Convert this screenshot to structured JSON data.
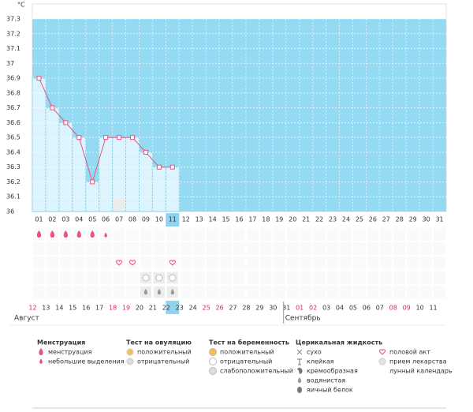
{
  "chart_data": {
    "type": "line",
    "y_label": "°C",
    "categories": [
      "01",
      "02",
      "03",
      "04",
      "05",
      "06",
      "07",
      "08",
      "09",
      "10",
      "11",
      "12",
      "13",
      "14",
      "15",
      "16",
      "17",
      "18",
      "19",
      "20",
      "21",
      "22",
      "23",
      "24",
      "25",
      "26",
      "27",
      "28",
      "29",
      "30",
      "31"
    ],
    "values": [
      36.9,
      36.7,
      36.6,
      36.5,
      36.2,
      36.5,
      36.5,
      36.5,
      36.4,
      36.3,
      36.3,
      null,
      null,
      null,
      null,
      null,
      null,
      null,
      null,
      null,
      null,
      null,
      null,
      null,
      null,
      null,
      null,
      null,
      null,
      null,
      null
    ],
    "color": "#e8547a",
    "ylim": [
      36,
      37.3
    ],
    "yticks": [
      36,
      36.1,
      36.2,
      36.3,
      36.4,
      36.5,
      36.6,
      36.7,
      36.8,
      36.9,
      37,
      37.1,
      37.2,
      37.3
    ],
    "grid": true,
    "current_index": 10,
    "markers": {
      "menstruation": [
        1,
        2,
        3,
        4,
        5
      ],
      "light_spotting": [
        6
      ],
      "intercourse": [
        7,
        8,
        11
      ],
      "ovulation_negative": [
        9,
        10,
        11
      ],
      "watery": [
        9,
        10,
        11
      ],
      "lunar": [
        7
      ]
    },
    "dates": [
      {
        "label": "12",
        "weekend": true
      },
      {
        "label": "13",
        "weekend": false
      },
      {
        "label": "14",
        "weekend": false
      },
      {
        "label": "15",
        "weekend": false
      },
      {
        "label": "16",
        "weekend": false
      },
      {
        "label": "17",
        "weekend": false
      },
      {
        "label": "18",
        "weekend": true
      },
      {
        "label": "19",
        "weekend": true
      },
      {
        "label": "20",
        "weekend": false
      },
      {
        "label": "21",
        "weekend": false
      },
      {
        "label": "22",
        "weekend": false
      },
      {
        "label": "23",
        "weekend": false
      },
      {
        "label": "24",
        "weekend": false
      },
      {
        "label": "25",
        "weekend": true
      },
      {
        "label": "26",
        "weekend": true
      },
      {
        "label": "27",
        "weekend": false
      },
      {
        "label": "28",
        "weekend": false
      },
      {
        "label": "29",
        "weekend": false
      },
      {
        "label": "30",
        "weekend": false
      },
      {
        "label": "31",
        "weekend": false
      },
      {
        "label": "01",
        "weekend": true
      },
      {
        "label": "02",
        "weekend": true
      },
      {
        "label": "03",
        "weekend": false
      },
      {
        "label": "04",
        "weekend": false
      },
      {
        "label": "05",
        "weekend": false
      },
      {
        "label": "06",
        "weekend": false
      },
      {
        "label": "07",
        "weekend": false
      },
      {
        "label": "08",
        "weekend": true
      },
      {
        "label": "09",
        "weekend": true
      },
      {
        "label": "10",
        "weekend": false
      },
      {
        "label": "11",
        "weekend": false
      }
    ],
    "months": [
      {
        "label": "Август",
        "start": 0
      },
      {
        "label": "Сентябрь",
        "start": 20
      }
    ],
    "legend": [
      {
        "title": "Менструация",
        "items": [
          "менструация",
          "небольшие выделения"
        ]
      },
      {
        "title": "Тест на овуляцию",
        "items": [
          "положительный",
          "отрицательный"
        ]
      },
      {
        "title": "Тест на беременность",
        "items": [
          "положительный",
          "отрицательный",
          "слабоположительный"
        ]
      },
      {
        "title": "Церикальная жидкость",
        "items": [
          "сухо",
          "клейкая",
          "кремообразная",
          "водянистая",
          "яичный белок"
        ]
      },
      {
        "items": [
          "половой акт",
          "прием лекарства",
          "лунный календарь"
        ]
      }
    ]
  }
}
